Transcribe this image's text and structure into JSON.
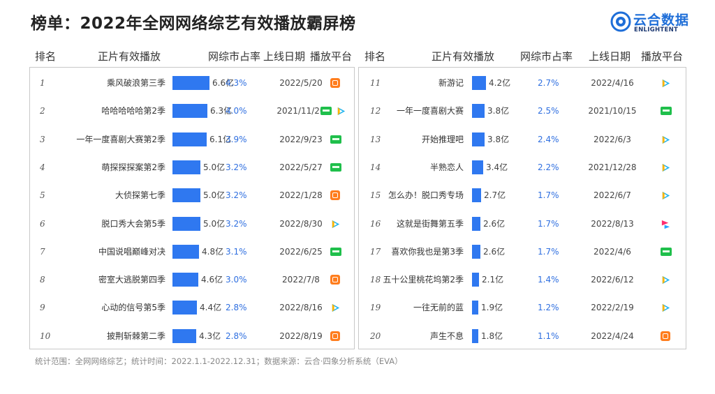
{
  "title": "榜单：2022年全网网络综艺有效播放霸屏榜",
  "logo": {
    "cn": "云合数据",
    "en": "ENLIGHTENT"
  },
  "headers": {
    "rank": "排名",
    "name": "正片有效播放",
    "share": "网综市占率",
    "date": "上线日期",
    "platform": "播放平台"
  },
  "footer": "统计范围：全网网络综艺；统计时间：2022.1.1-2022.12.31；数据来源：云合·四象分析系统（EVA）",
  "colors": {
    "bar": "#2f78f0",
    "share_text": "#2f6fe0",
    "mango": "#ff7d1d",
    "iqiyi": "#1fbf4b",
    "tencent_a": "#ffb400",
    "tencent_b": "#1fb4f0",
    "tencent_c": "#2ecc71",
    "youku_a": "#ff2d6f",
    "youku_b": "#2aa2ff"
  },
  "chart_data": {
    "type": "bar",
    "unit": "亿",
    "rows": [
      {
        "rank": "1",
        "name": "乘风破浪第三季",
        "value": 6.6,
        "value_label": "6.6亿",
        "share": "4.3%",
        "date": "2022/5/20",
        "platforms": [
          "mango"
        ]
      },
      {
        "rank": "2",
        "name": "哈哈哈哈哈第2季",
        "value": 6.3,
        "value_label": "6.3亿",
        "share": "4.0%",
        "date": "2021/11/20",
        "platforms": [
          "iqiyi",
          "tencent"
        ]
      },
      {
        "rank": "3",
        "name": "一年一度喜剧大赛第2季",
        "value": 6.1,
        "value_label": "6.1亿",
        "share": "3.9%",
        "date": "2022/9/23",
        "platforms": [
          "iqiyi"
        ]
      },
      {
        "rank": "4",
        "name": "萌探探探案第2季",
        "value": 5.0,
        "value_label": "5.0亿",
        "share": "3.2%",
        "date": "2022/5/27",
        "platforms": [
          "iqiyi"
        ]
      },
      {
        "rank": "5",
        "name": "大侦探第七季",
        "value": 5.0,
        "value_label": "5.0亿",
        "share": "3.2%",
        "date": "2022/1/28",
        "platforms": [
          "mango"
        ]
      },
      {
        "rank": "6",
        "name": "脱口秀大会第5季",
        "value": 5.0,
        "value_label": "5.0亿",
        "share": "3.2%",
        "date": "2022/8/30",
        "platforms": [
          "tencent"
        ]
      },
      {
        "rank": "7",
        "name": "中国说唱巅峰对决",
        "value": 4.8,
        "value_label": "4.8亿",
        "share": "3.1%",
        "date": "2022/6/25",
        "platforms": [
          "iqiyi"
        ]
      },
      {
        "rank": "8",
        "name": "密室大逃脱第四季",
        "value": 4.6,
        "value_label": "4.6亿",
        "share": "3.0%",
        "date": "2022/7/8",
        "platforms": [
          "mango"
        ]
      },
      {
        "rank": "9",
        "name": "心动的信号第5季",
        "value": 4.4,
        "value_label": "4.4亿",
        "share": "2.8%",
        "date": "2022/8/16",
        "platforms": [
          "tencent"
        ]
      },
      {
        "rank": "10",
        "name": "披荆斩棘第二季",
        "value": 4.3,
        "value_label": "4.3亿",
        "share": "2.8%",
        "date": "2022/8/19",
        "platforms": [
          "mango"
        ]
      },
      {
        "rank": "11",
        "name": "新游记",
        "value": 4.2,
        "value_label": "4.2亿",
        "share": "2.7%",
        "date": "2022/4/16",
        "platforms": [
          "tencent"
        ]
      },
      {
        "rank": "12",
        "name": "一年一度喜剧大赛",
        "value": 3.8,
        "value_label": "3.8亿",
        "share": "2.5%",
        "date": "2021/10/15",
        "platforms": [
          "iqiyi"
        ]
      },
      {
        "rank": "13",
        "name": "开始推理吧",
        "value": 3.8,
        "value_label": "3.8亿",
        "share": "2.4%",
        "date": "2022/6/3",
        "platforms": [
          "tencent"
        ]
      },
      {
        "rank": "14",
        "name": "半熟恋人",
        "value": 3.4,
        "value_label": "3.4亿",
        "share": "2.2%",
        "date": "2021/12/28",
        "platforms": [
          "tencent"
        ]
      },
      {
        "rank": "15",
        "name": "怎么办！脱口秀专场",
        "value": 2.7,
        "value_label": "2.7亿",
        "share": "1.7%",
        "date": "2022/6/7",
        "platforms": [
          "tencent"
        ]
      },
      {
        "rank": "16",
        "name": "这就是街舞第五季",
        "value": 2.6,
        "value_label": "2.6亿",
        "share": "1.7%",
        "date": "2022/8/13",
        "platforms": [
          "youku"
        ]
      },
      {
        "rank": "17",
        "name": "喜欢你我也是第3季",
        "value": 2.6,
        "value_label": "2.6亿",
        "share": "1.7%",
        "date": "2022/4/6",
        "platforms": [
          "iqiyi"
        ]
      },
      {
        "rank": "18",
        "name": "五十公里桃花坞第2季",
        "value": 2.1,
        "value_label": "2.1亿",
        "share": "1.4%",
        "date": "2022/6/12",
        "platforms": [
          "tencent"
        ]
      },
      {
        "rank": "19",
        "name": "一往无前的蓝",
        "value": 1.9,
        "value_label": "1.9亿",
        "share": "1.2%",
        "date": "2022/2/19",
        "platforms": [
          "tencent"
        ]
      },
      {
        "rank": "20",
        "name": "声生不息",
        "value": 1.8,
        "value_label": "1.8亿",
        "share": "1.1%",
        "date": "2022/4/24",
        "platforms": [
          "mango"
        ]
      }
    ]
  }
}
